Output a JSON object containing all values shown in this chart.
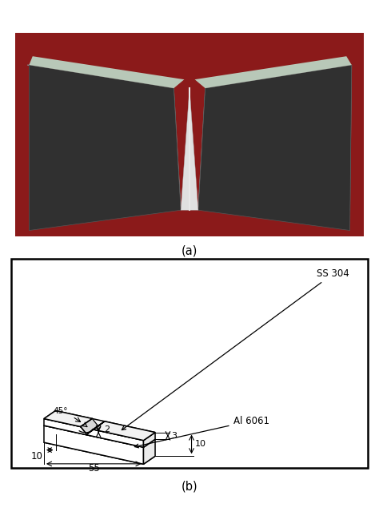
{
  "title_a": "(a)",
  "title_b": "(b)",
  "label_45": "45°",
  "label_2": "2",
  "label_3": "3",
  "label_10_side": "10",
  "label_10_bottom": "10",
  "label_55": "55",
  "label_SS304": "SS 304",
  "label_Al6061": "Al 6061",
  "bg_color": "#ffffff",
  "line_color": "#000000",
  "photo_bg": "#8B1A1A",
  "metal_light": "#c8c8c8",
  "metal_mid": "#a0a0a0",
  "metal_dark": "#303030",
  "metal_top": "#d8d8d8",
  "notch_dark": "#606060"
}
